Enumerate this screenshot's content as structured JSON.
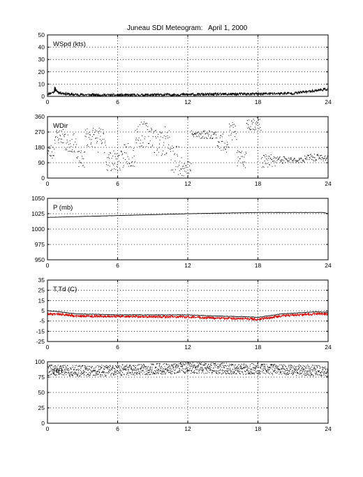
{
  "figure": {
    "title_left": "Juneau SDI Meteogram:",
    "title_right": "April  1, 2000"
  },
  "colors": {
    "axis": "#000000",
    "grid": "#000000",
    "temperature": "#000000",
    "dewpoint": "#d00000"
  },
  "chart_data": [
    {
      "type": "line",
      "name": "wind-speed",
      "label": "WSpd (kts)",
      "xlim": [
        0,
        24
      ],
      "ylim": [
        0,
        50
      ],
      "xticks": [
        0,
        6,
        12,
        18,
        24
      ],
      "yticks": [
        0,
        10,
        20,
        30,
        40,
        50
      ],
      "grid": true,
      "series": [
        {
          "color": "#000000",
          "style": "line",
          "shape": "wind",
          "points": 900,
          "seed": 11
        }
      ]
    },
    {
      "type": "scatter",
      "name": "wind-direction",
      "label": "WDir",
      "xlim": [
        0,
        24
      ],
      "ylim": [
        0,
        360
      ],
      "xticks": [
        0,
        6,
        12,
        18,
        24
      ],
      "yticks": [
        0,
        90,
        180,
        270,
        360
      ],
      "grid": true,
      "series": [
        {
          "color": "#000000",
          "style": "dots",
          "shape": "dir",
          "points": 700,
          "seed": 23
        }
      ]
    },
    {
      "type": "line",
      "name": "pressure",
      "label": "P (mb)",
      "xlim": [
        0,
        24
      ],
      "ylim": [
        950,
        1050
      ],
      "xticks": [
        0,
        6,
        12,
        18,
        24
      ],
      "yticks": [
        950,
        975,
        1000,
        1025,
        1050
      ],
      "grid": true,
      "series": [
        {
          "color": "#000000",
          "style": "line",
          "shape": "pres",
          "points": 300,
          "seed": 5
        }
      ]
    },
    {
      "type": "line",
      "name": "temperature-dewpoint",
      "label": "T,Td (C)",
      "xlim": [
        0,
        24
      ],
      "ylim": [
        -25,
        35
      ],
      "xticks": [
        0,
        6,
        12,
        18,
        24
      ],
      "yticks": [
        -25,
        -15,
        -5,
        5,
        15,
        25,
        35
      ],
      "grid": true,
      "series": [
        {
          "color": "#000000",
          "style": "line",
          "shape": "temp",
          "points": 400,
          "seed": 7
        },
        {
          "color": "#d00000",
          "style": "line",
          "shape": "dew",
          "points": 900,
          "seed": 9
        }
      ]
    },
    {
      "type": "scatter",
      "name": "relative-humidity",
      "label": "RH",
      "xlim": [
        0,
        24
      ],
      "ylim": [
        0,
        100
      ],
      "xticks": [
        0,
        6,
        12,
        18,
        24
      ],
      "yticks": [
        0,
        25,
        50,
        75,
        100
      ],
      "grid": true,
      "series": [
        {
          "color": "#000000",
          "style": "dots",
          "shape": "rh",
          "points": 1500,
          "seed": 31
        }
      ]
    }
  ]
}
